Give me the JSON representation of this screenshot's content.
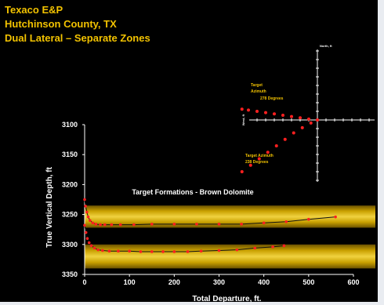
{
  "title": {
    "line1": "Texaco E&P",
    "line2": "Hutchinson County, TX",
    "line3": "Dual Lateral – Separate Zones"
  },
  "colors": {
    "title": "#f2c200",
    "background": "#000000",
    "band": "#c9a000",
    "marker": "#ff2020",
    "trend": "#000000"
  },
  "chart_data": [
    {
      "type": "scatter",
      "xlabel": "Total Departure, ft.",
      "ylabel": "True Vertical Depth, ft",
      "xlim": [
        0,
        600
      ],
      "ylim": [
        3350,
        3100
      ],
      "x_ticks": [
        0,
        100,
        200,
        300,
        400,
        500,
        600
      ],
      "y_ticks": [
        3100,
        3150,
        3200,
        3250,
        3300,
        3350
      ],
      "grid": false,
      "annotation": "Target Formations - Brown Dolomite",
      "bands": [
        {
          "from": 3235,
          "to": 3272
        },
        {
          "from": 3300,
          "to": 3340
        }
      ],
      "series": [
        {
          "values": [
            [
              0,
              3225
            ],
            [
              2,
              3236
            ],
            [
              5,
              3246
            ],
            [
              8,
              3254
            ],
            [
              12,
              3260
            ],
            [
              18,
              3264
            ],
            [
              25,
              3266
            ],
            [
              35,
              3267
            ],
            [
              45,
              3267
            ],
            [
              60,
              3267
            ],
            [
              80,
              3267
            ],
            [
              110,
              3267
            ],
            [
              150,
              3266
            ],
            [
              200,
              3266
            ],
            [
              250,
              3266
            ],
            [
              300,
              3266
            ],
            [
              350,
              3266
            ],
            [
              400,
              3264
            ],
            [
              450,
              3262
            ],
            [
              500,
              3258
            ],
            [
              560,
              3254
            ]
          ]
        },
        {
          "values": [
            [
              0,
              3268
            ],
            [
              3,
              3280
            ],
            [
              6,
              3290
            ],
            [
              10,
              3297
            ],
            [
              15,
              3302
            ],
            [
              22,
              3306
            ],
            [
              30,
              3309
            ],
            [
              40,
              3310
            ],
            [
              55,
              3311
            ],
            [
              75,
              3311
            ],
            [
              100,
              3311
            ],
            [
              125,
              3312
            ],
            [
              150,
              3312
            ],
            [
              175,
              3312
            ],
            [
              200,
              3312
            ],
            [
              230,
              3312
            ],
            [
              260,
              3311
            ],
            [
              300,
              3310
            ],
            [
              340,
              3309
            ],
            [
              380,
              3306
            ],
            [
              420,
              3304
            ],
            [
              445,
              3302
            ]
          ]
        }
      ]
    },
    {
      "type": "scatter",
      "ylabel": "North, ft",
      "xlabel": "West, ft",
      "annotations": [
        {
          "lines": [
            "Target",
            "Azimuth",
            "278 Degrees"
          ]
        },
        {
          "lines": [
            "Target Azimuth",
            "238 Degrees"
          ]
        }
      ],
      "series": [
        {
          "values": [
            [
              -175,
              25
            ],
            [
              -160,
              23
            ],
            [
              -140,
              20
            ],
            [
              -120,
              17
            ],
            [
              -100,
              14
            ],
            [
              -80,
              11
            ],
            [
              -60,
              8
            ],
            [
              -40,
              5
            ],
            [
              -20,
              2
            ],
            [
              0,
              0
            ]
          ]
        },
        {
          "values": [
            [
              -175,
              -120
            ],
            [
              -155,
              -105
            ],
            [
              -135,
              -90
            ],
            [
              -115,
              -75
            ],
            [
              -95,
              -60
            ],
            [
              -75,
              -45
            ],
            [
              -55,
              -30
            ],
            [
              -35,
              -18
            ],
            [
              -15,
              -7
            ],
            [
              0,
              0
            ]
          ]
        }
      ]
    }
  ]
}
